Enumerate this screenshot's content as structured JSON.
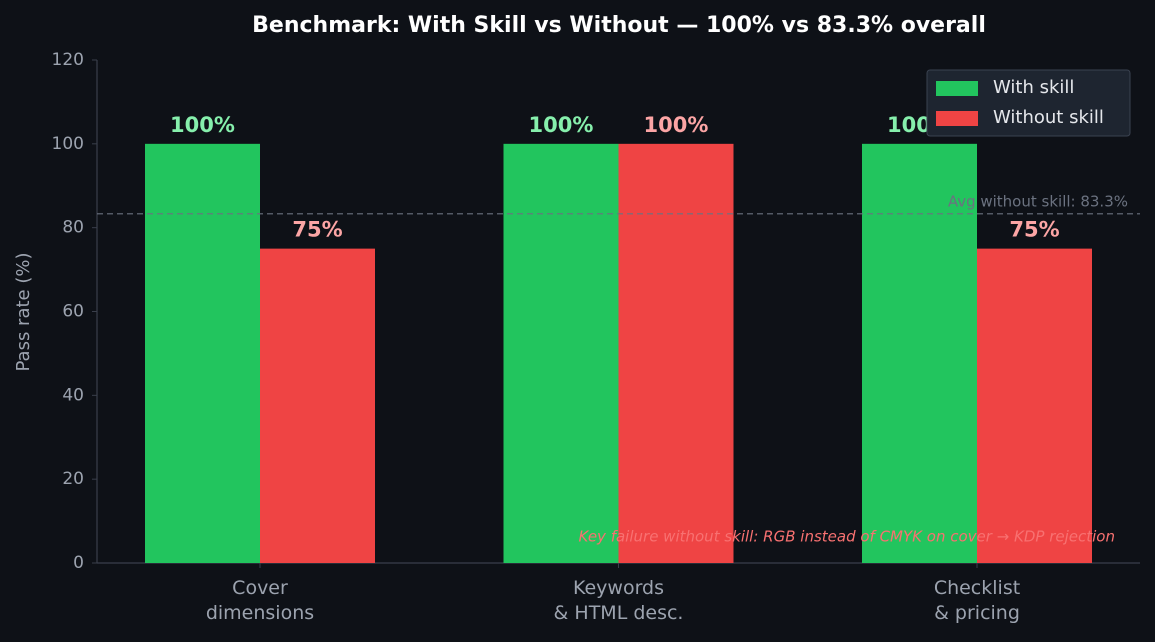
{
  "chart_data": {
    "type": "bar",
    "title": "Benchmark: With Skill vs Without — 100% vs 83.3% overall",
    "ylabel": "Pass rate (%)",
    "categories": [
      "Cover\ndimensions",
      "Keywords\n& HTML desc.",
      "Checklist\n& pricing"
    ],
    "series": [
      {
        "name": "With skill",
        "color": "#22c55e",
        "label_color": "#86efac",
        "values": [
          100,
          100,
          100
        ],
        "value_labels": [
          "100%",
          "100%",
          "100%"
        ]
      },
      {
        "name": "Without skill",
        "color": "#ef4444",
        "label_color": "#fca5a5",
        "values": [
          75,
          100,
          75
        ],
        "value_labels": [
          "75%",
          "100%",
          "75%"
        ]
      }
    ],
    "reference_line": {
      "value": 83.3,
      "label": "Avg without skill: 83.3%"
    },
    "annotation": "Key failure without skill: RGB instead of CMYK on cover → KDP rejection",
    "ylim": [
      0,
      120
    ],
    "yticks": [
      0,
      20,
      40,
      60,
      80,
      100,
      120
    ],
    "legend": "upper right",
    "grid": false
  }
}
